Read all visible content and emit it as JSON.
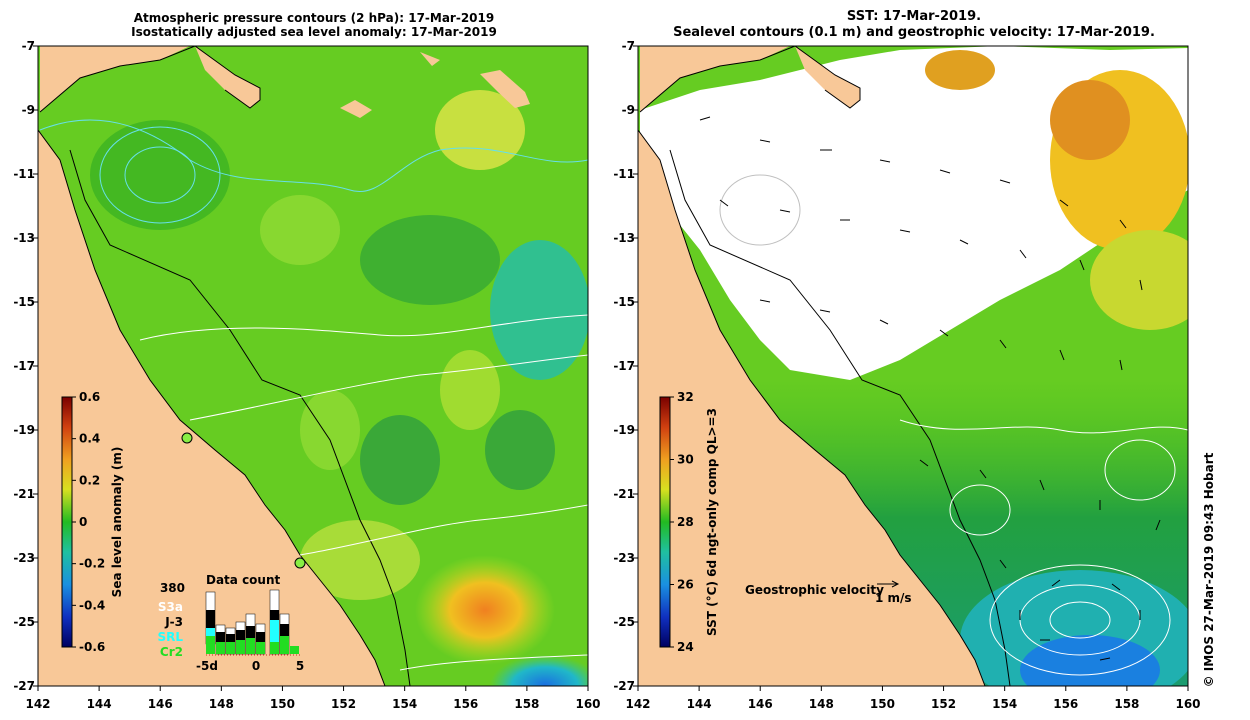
{
  "left_panel": {
    "title_line1": "Atmospheric pressure contours (2 hPa): 17-Mar-2019",
    "title_line2": "Isostatically adjusted sea level anomaly: 17-Mar-2019",
    "colorbar": {
      "label": "Sea level anomaly (m)",
      "ticks": [
        "0.6",
        "0.4",
        "0.2",
        "0",
        "-0.2",
        "-0.4",
        "-0.6"
      ]
    },
    "data_count": {
      "title": "Data count",
      "max_label": "380",
      "legend": [
        {
          "label": "S3a",
          "color": "#ffffff"
        },
        {
          "label": "J-3",
          "color": "#000000"
        },
        {
          "label": "SRL",
          "color": "#22ffff"
        },
        {
          "label": "Cr2",
          "color": "#22dd22"
        }
      ],
      "x_ticks": [
        "-5d",
        "0",
        "5"
      ]
    }
  },
  "right_panel": {
    "title_line1": "SST: 17-Mar-2019.",
    "title_line2": "Sealevel contours (0.1 m) and geostrophic velocity: 17-Mar-2019.",
    "colorbar": {
      "label": "SST (°C) 6d ngt-only comp QL>=3",
      "ticks": [
        "32",
        "30",
        "28",
        "26",
        "24"
      ]
    },
    "velocity_key": {
      "label": "Geostrophic velocity",
      "scale": "1 m/s"
    },
    "credit": "© IMOS 27-Mar-2019 09:43 Hobart"
  },
  "axes": {
    "x_ticks": [
      "142",
      "144",
      "146",
      "148",
      "150",
      "152",
      "154",
      "156",
      "158",
      "160"
    ],
    "y_ticks": [
      "-7",
      "-9",
      "-11",
      "-13",
      "-15",
      "-17",
      "-19",
      "-21",
      "-23",
      "-25",
      "-27"
    ]
  },
  "colors": {
    "land": "#f8c898",
    "sla_base": "#66cc22",
    "sst_base": "#44bb22",
    "cloud": "#ffffff"
  }
}
